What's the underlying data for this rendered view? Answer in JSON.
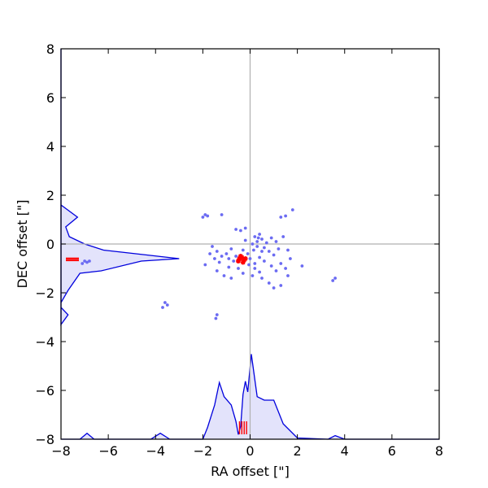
{
  "chart_data": {
    "type": "scatter",
    "xlabel": "RA offset [\"]",
    "ylabel": "DEC offset [\"]",
    "xlim": [
      -8,
      8
    ],
    "ylim": [
      -8,
      8
    ],
    "xticks": [
      "−8",
      "−6",
      "−4",
      "−2",
      "0",
      "2",
      "4",
      "6",
      "8"
    ],
    "xtick_values": [
      -8,
      -6,
      -4,
      -2,
      0,
      2,
      4,
      6,
      8
    ],
    "yticks": [
      "−8",
      "−6",
      "−4",
      "−2",
      "0",
      "2",
      "4",
      "6",
      "8"
    ],
    "ytick_values": [
      -8,
      -6,
      -4,
      -2,
      0,
      2,
      4,
      6,
      8
    ],
    "grid": false,
    "crosshair_at": [
      0,
      0
    ],
    "colors": {
      "points": "#6b6bf2",
      "crosshair": "#b0b0b0",
      "density_line": "#0000dd",
      "density_fill": "#e3e3fb",
      "marker": "#ff0000",
      "frame": "#000000"
    },
    "series": [
      {
        "type": "scatter",
        "points": [
          [
            -2.0,
            1.1
          ],
          [
            -1.9,
            1.2
          ],
          [
            -1.8,
            1.15
          ],
          [
            -1.2,
            1.2
          ],
          [
            -0.6,
            0.6
          ],
          [
            -0.4,
            0.55
          ],
          [
            -0.2,
            0.65
          ],
          [
            1.3,
            1.1
          ],
          [
            1.5,
            1.15
          ],
          [
            1.8,
            1.4
          ],
          [
            0.4,
            0.4
          ],
          [
            0.2,
            0.3
          ],
          [
            0.5,
            0.2
          ],
          [
            0.9,
            0.25
          ],
          [
            1.1,
            0.1
          ],
          [
            1.4,
            0.3
          ],
          [
            0.1,
            0.0
          ],
          [
            0.3,
            -0.1
          ],
          [
            0.6,
            -0.15
          ],
          [
            0.8,
            -0.3
          ],
          [
            1.2,
            -0.2
          ],
          [
            1.6,
            -0.25
          ],
          [
            -1.6,
            -0.1
          ],
          [
            -1.4,
            -0.3
          ],
          [
            -1.2,
            -0.5
          ],
          [
            -1.5,
            -0.6
          ],
          [
            -1.3,
            -0.75
          ],
          [
            -1.0,
            -0.4
          ],
          [
            -0.9,
            -0.6
          ],
          [
            -0.7,
            -0.7
          ],
          [
            -0.8,
            -0.2
          ],
          [
            -0.3,
            -0.25
          ],
          [
            -0.1,
            -0.4
          ],
          [
            0.0,
            -0.6
          ],
          [
            0.2,
            -0.8
          ],
          [
            0.4,
            -0.55
          ],
          [
            0.6,
            -0.7
          ],
          [
            0.9,
            -0.9
          ],
          [
            1.1,
            -1.1
          ],
          [
            1.3,
            -0.8
          ],
          [
            1.5,
            -1.0
          ],
          [
            1.7,
            -0.6
          ],
          [
            2.2,
            -0.9
          ],
          [
            -0.5,
            -1.0
          ],
          [
            -0.3,
            -1.2
          ],
          [
            0.1,
            -1.3
          ],
          [
            0.5,
            -1.4
          ],
          [
            0.8,
            -1.6
          ],
          [
            1.0,
            -1.8
          ],
          [
            1.3,
            -1.7
          ],
          [
            1.6,
            -1.3
          ],
          [
            -1.1,
            -1.3
          ],
          [
            -0.8,
            -1.4
          ],
          [
            -1.4,
            -1.1
          ],
          [
            -0.9,
            -0.95
          ],
          [
            0.3,
            0.1
          ],
          [
            0.5,
            -0.3
          ],
          [
            -0.2,
            0.15
          ],
          [
            0.7,
            0.05
          ],
          [
            1.0,
            -0.45
          ],
          [
            -0.6,
            -0.5
          ],
          [
            -1.7,
            -0.4
          ],
          [
            -1.9,
            -0.85
          ],
          [
            0.2,
            -1.0
          ],
          [
            0.4,
            -1.15
          ],
          [
            -0.05,
            -0.85
          ],
          [
            0.15,
            -0.25
          ],
          [
            0.35,
            0.25
          ],
          [
            -3.6,
            -2.4
          ],
          [
            -3.7,
            -2.6
          ],
          [
            -3.5,
            -2.5
          ],
          [
            -1.4,
            -2.9
          ],
          [
            -1.45,
            -3.05
          ],
          [
            3.5,
            -1.5
          ],
          [
            3.6,
            -1.4
          ],
          [
            -7.0,
            -0.7
          ],
          [
            -6.9,
            -0.75
          ],
          [
            -7.1,
            -0.8
          ],
          [
            -6.8,
            -0.7
          ]
        ]
      },
      {
        "type": "density-x",
        "x": [
          -8.0,
          -7.2,
          -6.9,
          -6.6,
          -4.2,
          -3.8,
          -3.4,
          -2.0,
          -1.8,
          -1.5,
          -1.3,
          -1.1,
          -0.8,
          -0.6,
          -0.5,
          -0.4,
          -0.3,
          -0.2,
          -0.1,
          0.05,
          0.3,
          0.6,
          1.0,
          1.4,
          2.0,
          3.3,
          3.6,
          4.0,
          8.0
        ],
        "h": [
          0.0,
          0.0,
          0.25,
          0.0,
          0.0,
          0.25,
          0.0,
          0.0,
          0.5,
          1.45,
          2.4,
          1.8,
          1.45,
          0.75,
          0.2,
          0.55,
          1.9,
          2.45,
          2.0,
          3.6,
          1.8,
          1.65,
          1.65,
          0.65,
          0.05,
          0.0,
          0.15,
          0.0,
          0.0
        ]
      },
      {
        "type": "density-y",
        "y": [
          8.0,
          -3.3,
          -2.9,
          -2.6,
          -2.4,
          -1.9,
          -1.2,
          -1.1,
          -0.7,
          -0.6,
          -0.25,
          0.0,
          0.3,
          0.7,
          1.1,
          1.6,
          8.0
        ],
        "w": [
          0.0,
          0.0,
          0.3,
          0.0,
          0.0,
          0.3,
          0.8,
          1.7,
          3.4,
          5.0,
          1.8,
          1.0,
          0.35,
          0.2,
          0.7,
          0.0,
          0.0
        ]
      },
      {
        "type": "markers",
        "points": [
          [
            -0.45,
            -0.6
          ],
          [
            -0.35,
            -0.55
          ],
          [
            -0.25,
            -0.65
          ],
          [
            -0.5,
            -0.7
          ],
          [
            -0.3,
            -0.75
          ],
          [
            -0.4,
            -0.5
          ],
          [
            -0.2,
            -0.6
          ]
        ],
        "x_ticks": [
          -0.45,
          -0.35,
          -0.25,
          -0.15
        ],
        "y_ticks": [
          -0.58,
          -0.63,
          -0.68
        ]
      }
    ]
  }
}
